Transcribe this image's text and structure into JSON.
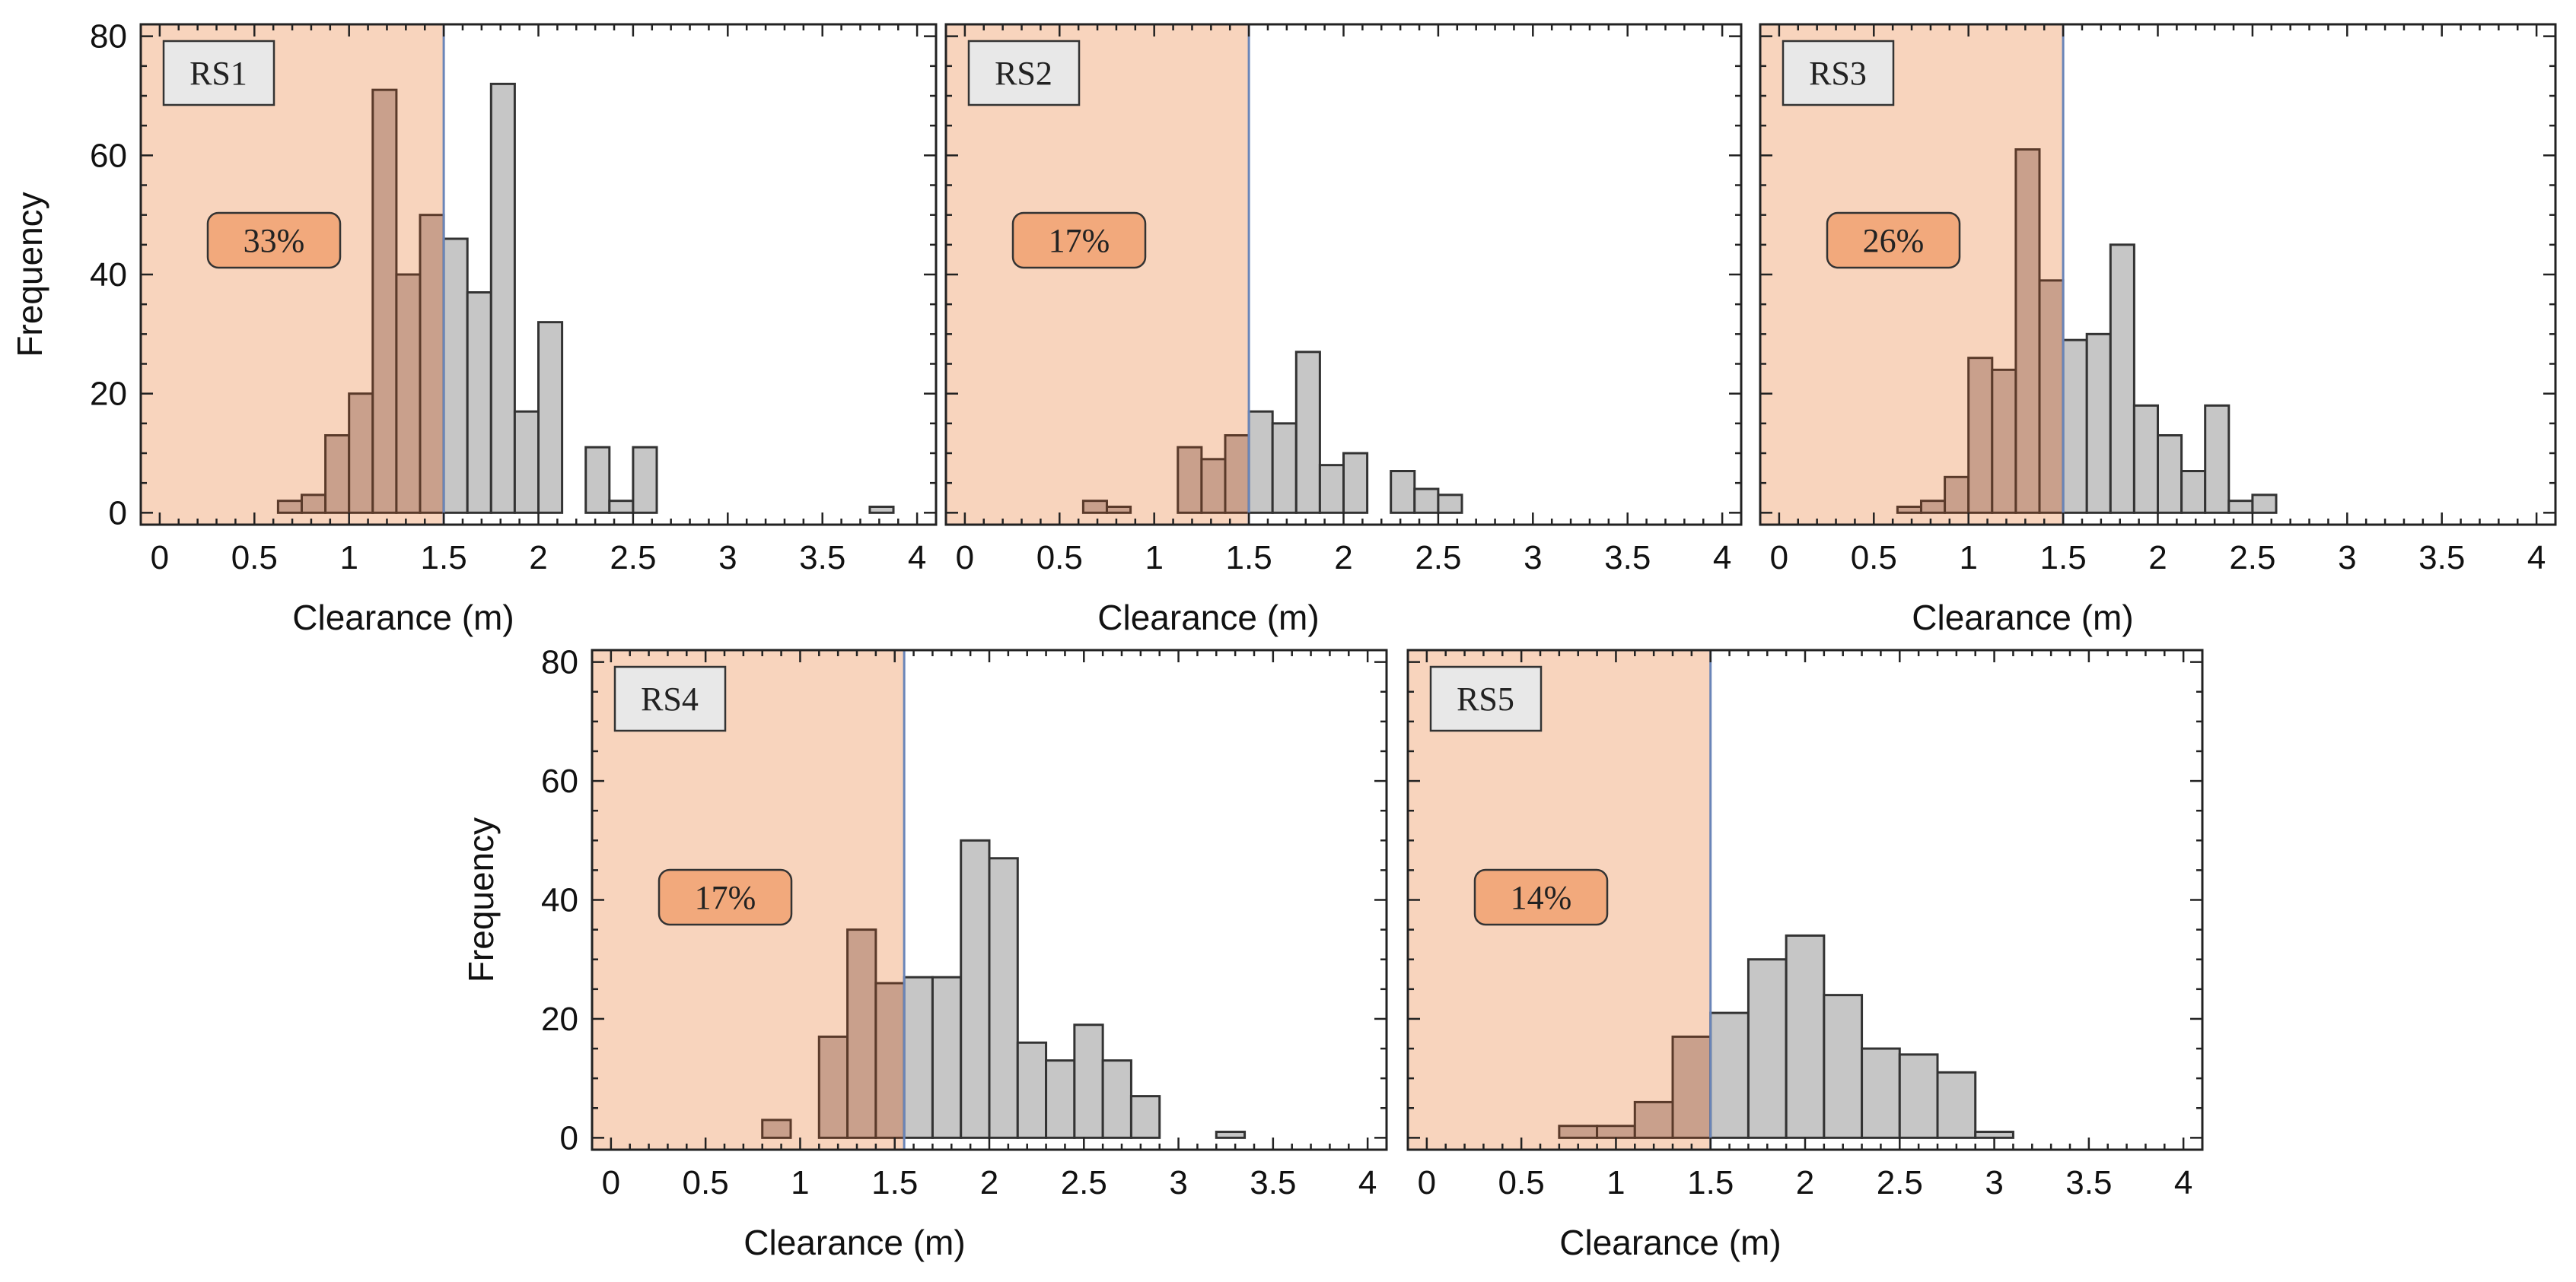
{
  "chart_data": [
    {
      "type": "bar",
      "panel": "RS1",
      "percent_label": "33%",
      "threshold": 1.5,
      "xlabel": "Clearance (m)",
      "ylabel": "Frequency",
      "xlim": [
        -0.1,
        4.1
      ],
      "ylim": [
        -2,
        82
      ],
      "xticks": [
        "0",
        "0.5",
        "1",
        "1.5",
        "2",
        "2.5",
        "3",
        "3.5",
        "4"
      ],
      "yticks": [
        "0",
        "20",
        "40",
        "60",
        "80"
      ],
      "bin_width": 0.125,
      "bin_starts": [
        0.625,
        0.75,
        0.875,
        1.0,
        1.125,
        1.25,
        1.375,
        1.5,
        1.625,
        1.75,
        1.875,
        2.0,
        2.125,
        2.25,
        2.375,
        2.5,
        2.625,
        2.75,
        2.875,
        3.0,
        3.125,
        3.25,
        3.375,
        3.5,
        3.625,
        3.75
      ],
      "values": [
        2,
        3,
        13,
        20,
        71,
        40,
        50,
        46,
        37,
        72,
        17,
        32,
        0,
        11,
        2,
        11,
        0,
        0,
        0,
        0,
        0,
        0,
        0,
        0,
        0,
        1
      ]
    },
    {
      "type": "bar",
      "panel": "RS2",
      "percent_label": "17%",
      "threshold": 1.5,
      "xlabel": "Clearance (m)",
      "ylabel": "",
      "xlim": [
        -0.1,
        4.1
      ],
      "ylim": [
        -2,
        82
      ],
      "xticks": [
        "0",
        "0.5",
        "1",
        "1.5",
        "2",
        "2.5",
        "3",
        "3.5",
        "4"
      ],
      "yticks": [],
      "bin_width": 0.125,
      "bin_starts": [
        0.625,
        0.75,
        0.875,
        1.0,
        1.125,
        1.25,
        1.375,
        1.5,
        1.625,
        1.75,
        1.875,
        2.0,
        2.125,
        2.25,
        2.375,
        2.5,
        2.625,
        2.75,
        2.875
      ],
      "values": [
        2,
        1,
        0,
        0,
        11,
        9,
        13,
        17,
        15,
        27,
        8,
        10,
        0,
        7,
        4,
        3,
        0,
        0,
        0
      ]
    },
    {
      "type": "bar",
      "panel": "RS3",
      "percent_label": "26%",
      "threshold": 1.5,
      "xlabel": "Clearance (m)",
      "ylabel": "",
      "xlim": [
        -0.1,
        4.1
      ],
      "ylim": [
        -2,
        82
      ],
      "xticks": [
        "0",
        "0.5",
        "1",
        "1.5",
        "2",
        "2.5",
        "3",
        "3.5",
        "4"
      ],
      "yticks": [],
      "bin_width": 0.125,
      "bin_starts": [
        0.625,
        0.75,
        0.875,
        1.0,
        1.125,
        1.25,
        1.375,
        1.5,
        1.625,
        1.75,
        1.875,
        2.0,
        2.125,
        2.25,
        2.375,
        2.5,
        2.625,
        2.75,
        2.875
      ],
      "values": [
        1,
        2,
        6,
        26,
        24,
        61,
        39,
        29,
        30,
        45,
        18,
        13,
        7,
        18,
        2,
        3,
        0,
        0,
        0
      ]
    },
    {
      "type": "bar",
      "panel": "RS4",
      "percent_label": "17%",
      "threshold": 1.55,
      "xlabel": "Clearance (m)",
      "ylabel": "Frequency",
      "xlim": [
        -0.1,
        4.1
      ],
      "ylim": [
        -2,
        82
      ],
      "xticks": [
        "0",
        "0.5",
        "1",
        "1.5",
        "2",
        "2.5",
        "3",
        "3.5",
        "4"
      ],
      "yticks": [
        "0",
        "20",
        "40",
        "60",
        "80"
      ],
      "bin_width": 0.15,
      "bin_starts": [
        0.8,
        0.95,
        1.1,
        1.25,
        1.4,
        1.55,
        1.7,
        1.85,
        2.0,
        2.15,
        2.3,
        2.45,
        2.6,
        2.75,
        2.9,
        3.05,
        3.2
      ],
      "values": [
        3,
        0,
        17,
        35,
        26,
        27,
        27,
        50,
        47,
        16,
        13,
        19,
        13,
        7,
        0,
        0,
        1
      ]
    },
    {
      "type": "bar",
      "panel": "RS5",
      "percent_label": "14%",
      "threshold": 1.5,
      "xlabel": "Clearance (m)",
      "ylabel": "",
      "xlim": [
        -0.1,
        4.1
      ],
      "ylim": [
        -2,
        82
      ],
      "xticks": [
        "0",
        "0.5",
        "1",
        "1.5",
        "2",
        "2.5",
        "3",
        "3.5",
        "4"
      ],
      "yticks": [],
      "bin_width": 0.2,
      "bin_starts": [
        0.7,
        0.9,
        1.1,
        1.3,
        1.5,
        1.7,
        1.9,
        2.1,
        2.3,
        2.5,
        2.7,
        2.9,
        3.1,
        3.3
      ],
      "values": [
        2,
        2,
        6,
        17,
        21,
        30,
        34,
        24,
        15,
        14,
        11,
        1,
        0,
        0
      ]
    }
  ]
}
